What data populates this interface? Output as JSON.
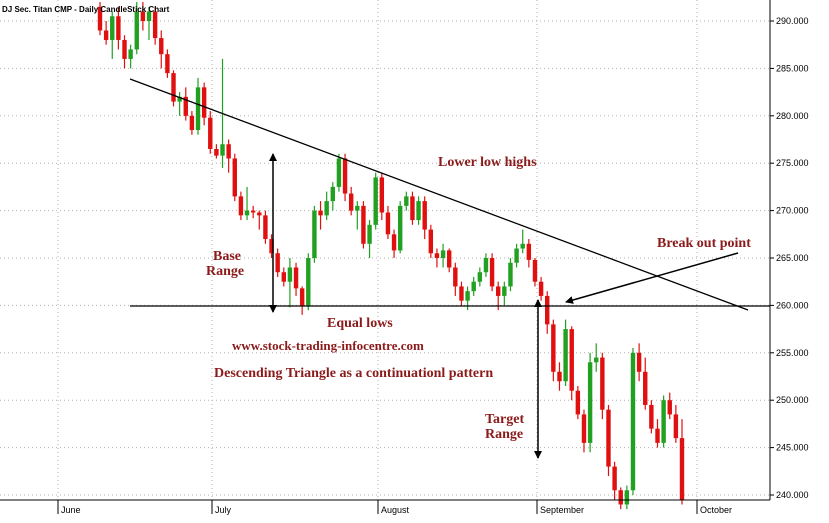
{
  "chart_data": {
    "type": "candlestick",
    "title": "DJ Sec. Titan CMP - Daily CandleStick Chart",
    "xlabel": "",
    "ylabel": "",
    "ylim": [
      238,
      292
    ],
    "y_ticks": [
      "290.000",
      "285.000",
      "280.000",
      "275.000",
      "270.000",
      "265.000",
      "260.000",
      "255.000",
      "250.000",
      "245.000",
      "240.000"
    ],
    "x_ticks": [
      "June",
      "July",
      "August",
      "September",
      "October"
    ],
    "grid": true,
    "colors": {
      "up": "#22a022",
      "down": "#e01010",
      "line": "#000000",
      "annotation": "#8b1a1a"
    },
    "candles": [
      [
        291.5,
        292,
        288.5,
        289
      ],
      [
        289,
        290,
        287.5,
        288
      ],
      [
        288,
        291,
        286,
        290.5
      ],
      [
        290.5,
        291.5,
        287,
        288
      ],
      [
        288,
        288.5,
        285,
        286
      ],
      [
        286,
        287.5,
        285,
        287
      ],
      [
        287,
        292,
        286.5,
        291
      ],
      [
        291,
        292,
        289,
        290
      ],
      [
        290,
        291.5,
        288,
        291
      ],
      [
        291,
        291.5,
        287.5,
        288.2
      ],
      [
        288.2,
        289,
        285,
        286.5
      ],
      [
        286.5,
        287,
        284,
        284.5
      ],
      [
        284.5,
        284.8,
        281,
        281.5
      ],
      [
        281.5,
        282.5,
        280,
        282
      ],
      [
        282,
        283,
        279.5,
        280
      ],
      [
        280,
        280.5,
        278,
        278.5
      ],
      [
        278.5,
        284,
        278,
        283
      ],
      [
        283,
        283.5,
        279,
        279.8
      ],
      [
        279.8,
        280.5,
        276,
        276.5
      ],
      [
        276.5,
        277,
        275.5,
        275.8
      ],
      [
        275.8,
        286,
        274.5,
        277
      ],
      [
        277,
        277.5,
        274,
        275.5
      ],
      [
        275.5,
        276,
        271,
        271.5
      ],
      [
        271.5,
        272,
        269,
        269.5
      ],
      [
        269.5,
        272.5,
        269,
        270
      ],
      [
        270,
        270.5,
        269.2,
        269.8
      ],
      [
        269.8,
        270,
        268,
        269.5
      ],
      [
        269.5,
        270,
        266.5,
        267
      ],
      [
        267,
        267.5,
        265,
        265.5
      ],
      [
        265.5,
        266,
        263,
        263.5
      ],
      [
        263.5,
        264,
        262,
        262.5
      ],
      [
        262.5,
        265,
        259.8,
        264
      ],
      [
        264,
        264.5,
        261,
        261.8
      ],
      [
        261.8,
        262,
        259,
        260
      ],
      [
        260,
        265.5,
        259.5,
        265
      ],
      [
        265,
        270.5,
        264.5,
        270
      ],
      [
        270,
        271,
        268,
        269.5
      ],
      [
        269.5,
        272,
        269,
        271
      ],
      [
        271,
        273,
        270,
        272.5
      ],
      [
        272.5,
        276,
        272,
        275.5
      ],
      [
        275.5,
        276,
        271,
        271.8
      ],
      [
        271.8,
        272.5,
        269.5,
        270
      ],
      [
        270,
        271,
        268,
        270.5
      ],
      [
        270.5,
        271,
        266,
        266.5
      ],
      [
        266.5,
        269,
        265,
        268.5
      ],
      [
        268.5,
        274,
        268,
        273.5
      ],
      [
        273.5,
        274,
        269,
        269.8
      ],
      [
        269.8,
        270.5,
        267,
        267.5
      ],
      [
        267.5,
        268,
        265,
        265.8
      ],
      [
        265.8,
        271,
        265.5,
        270.5
      ],
      [
        270.5,
        272,
        270,
        271.5
      ],
      [
        271.5,
        272,
        268.5,
        269
      ],
      [
        269,
        271.5,
        268.5,
        271
      ],
      [
        271,
        271.5,
        267,
        268
      ],
      [
        268,
        268.5,
        265,
        265.5
      ],
      [
        265.5,
        266,
        264,
        265
      ],
      [
        265,
        266.5,
        264,
        265.8
      ],
      [
        265.8,
        266,
        263.5,
        264
      ],
      [
        264,
        264.5,
        261,
        262
      ],
      [
        262,
        262.5,
        260,
        260.5
      ],
      [
        260.5,
        262,
        259.5,
        261.5
      ],
      [
        261.5,
        263,
        261,
        262.5
      ],
      [
        262.5,
        264,
        262,
        263.5
      ],
      [
        263.5,
        265.5,
        263,
        265
      ],
      [
        265,
        265.5,
        261.5,
        262
      ],
      [
        262,
        262.5,
        259.5,
        261
      ],
      [
        261,
        262.5,
        260,
        262
      ],
      [
        262,
        265,
        261.5,
        264.5
      ],
      [
        264.5,
        266.5,
        264,
        266
      ],
      [
        266,
        268,
        265.5,
        266.5
      ],
      [
        266.5,
        267,
        264,
        264.8
      ],
      [
        264.8,
        265,
        262,
        262.5
      ],
      [
        262.5,
        263,
        260.5,
        261
      ],
      [
        261,
        261.5,
        257,
        258
      ],
      [
        258,
        258.5,
        252,
        253
      ],
      [
        253,
        254,
        251,
        252
      ],
      [
        252,
        258.5,
        251.5,
        257.5
      ],
      [
        257.5,
        257.8,
        250,
        251
      ],
      [
        251,
        251.5,
        248,
        248.5
      ],
      [
        248.5,
        249,
        244.5,
        245.5
      ],
      [
        245.5,
        255,
        244.5,
        254
      ],
      [
        254,
        256,
        253,
        254.5
      ],
      [
        254.5,
        255,
        248,
        249
      ],
      [
        249,
        249.5,
        242,
        243
      ],
      [
        243,
        243.5,
        239.5,
        240.5
      ],
      [
        240.5,
        240.8,
        238.5,
        239
      ],
      [
        239,
        241,
        238.5,
        240.5
      ],
      [
        240.5,
        255.5,
        240,
        255
      ],
      [
        255,
        256,
        252,
        253
      ],
      [
        253,
        254.5,
        249,
        249.5
      ],
      [
        249.5,
        250,
        246.5,
        247
      ],
      [
        247,
        248,
        245,
        245.5
      ],
      [
        245.5,
        250.5,
        245,
        250
      ],
      [
        250,
        250.8,
        248,
        248.5
      ],
      [
        248.5,
        249.5,
        245.5,
        246
      ],
      [
        246,
        248,
        239,
        239.5
      ]
    ],
    "annotations": [
      "Lower low highs",
      "Break out point",
      "Base",
      "Range",
      "Equal lows",
      "www.stock-trading-infocentre.com",
      "Descending Triangle as a continuationl pattern",
      "Target",
      "Range"
    ]
  }
}
